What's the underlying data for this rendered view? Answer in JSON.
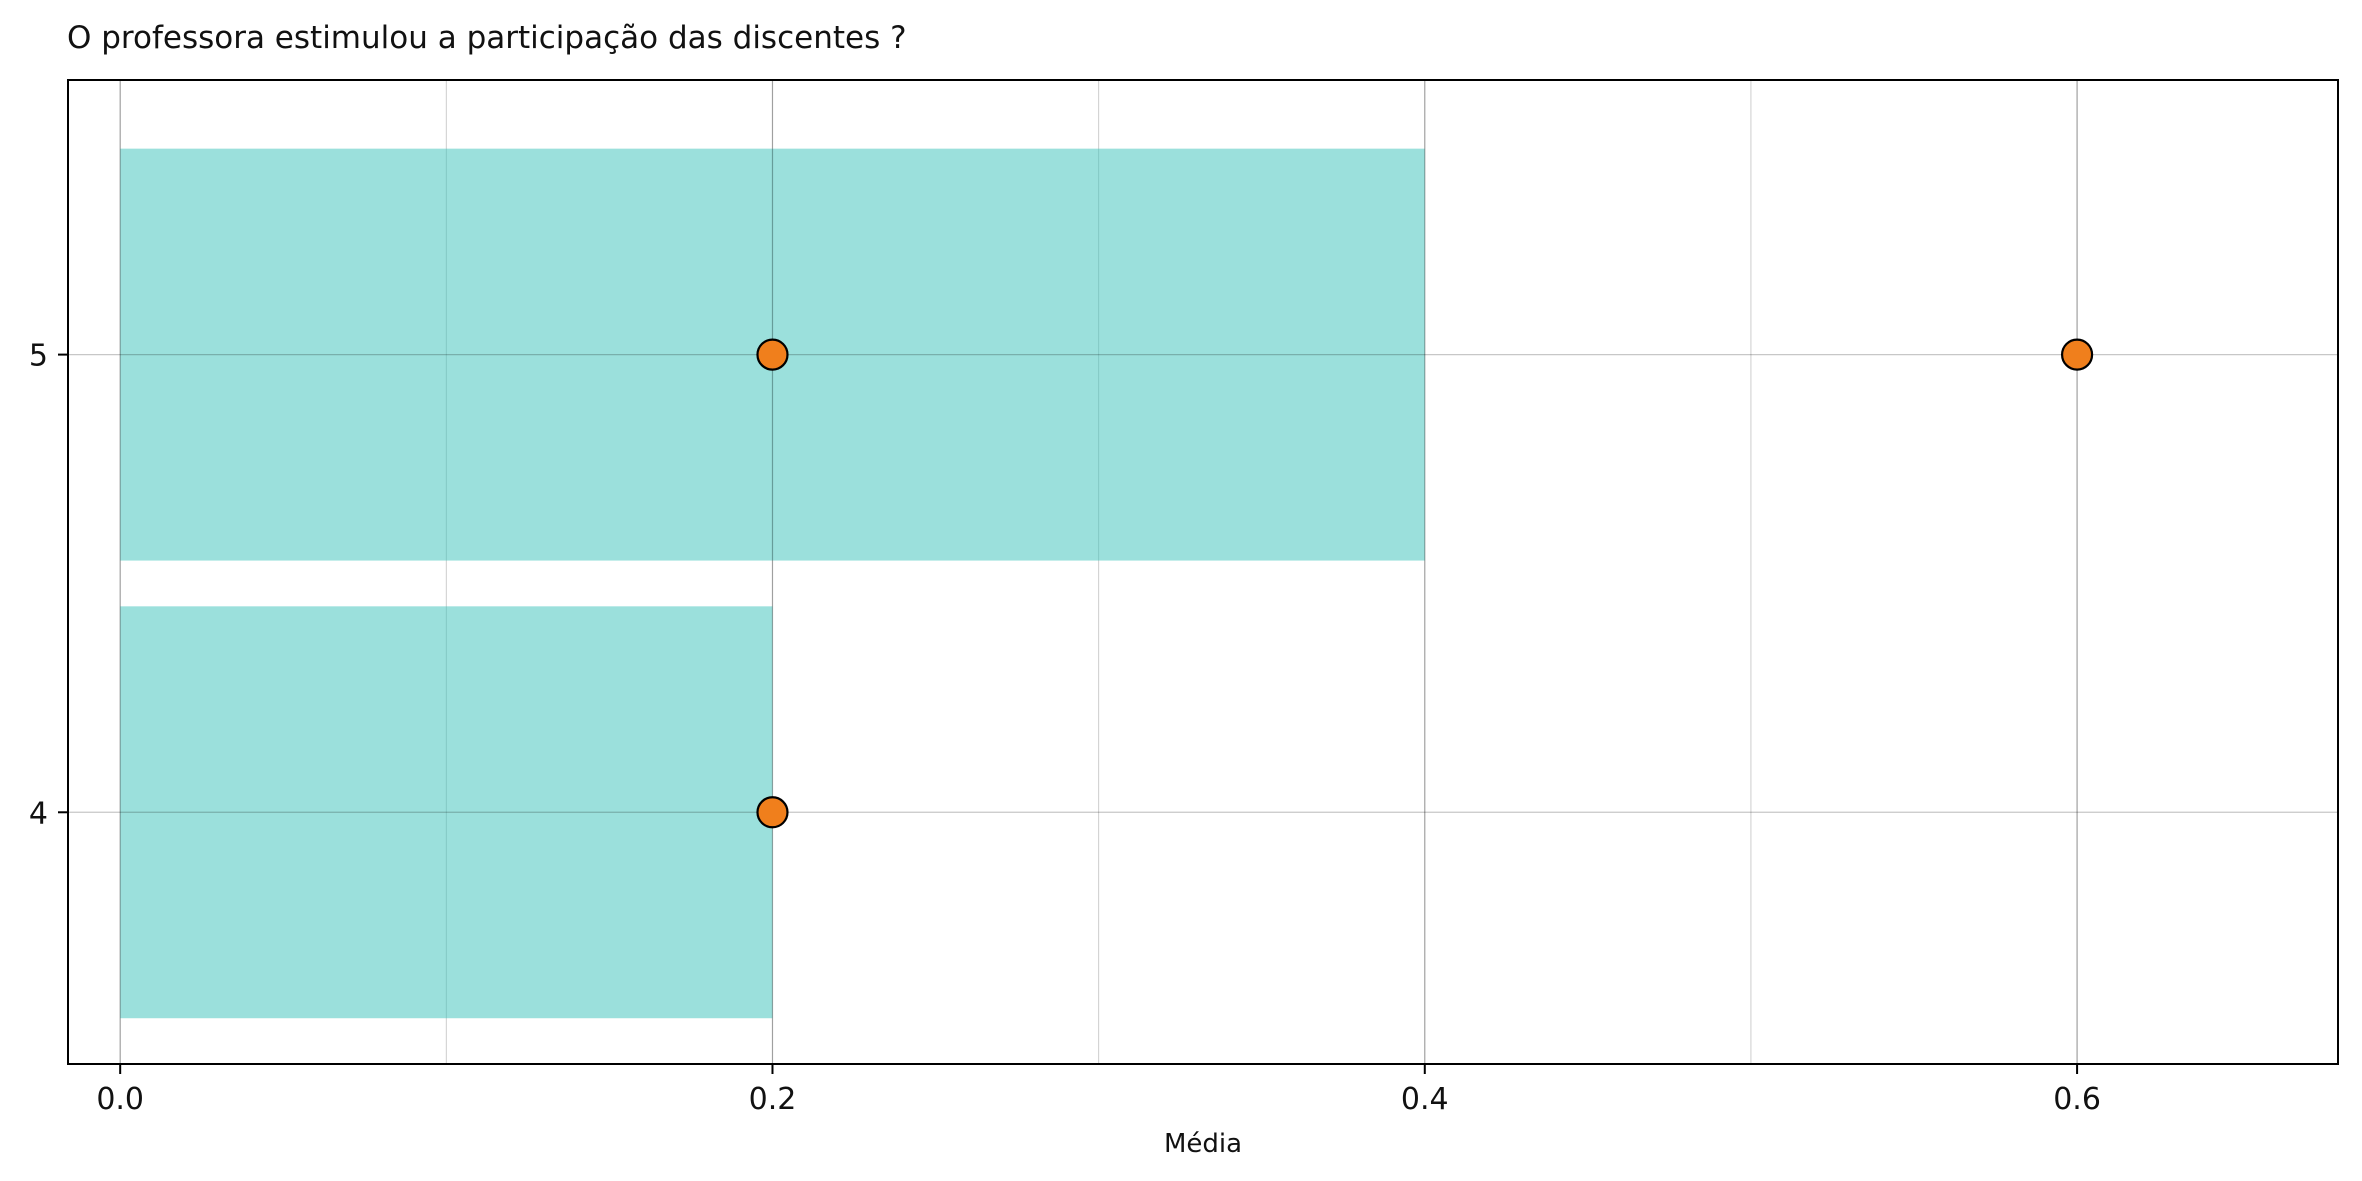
{
  "chart_data": {
    "type": "bar",
    "orientation": "horizontal",
    "title": "O professora estimulou a participação das discentes ?",
    "xlabel": "Média",
    "ylabel": "",
    "categories": [
      "4",
      "5"
    ],
    "values": [
      0.2,
      0.4
    ],
    "points": [
      {
        "x": 0.2,
        "y": "5"
      },
      {
        "x": 0.6,
        "y": "5"
      },
      {
        "x": 0.2,
        "y": "4"
      }
    ],
    "xlim": [
      -0.016,
      0.68
    ],
    "xticks": [
      0.0,
      0.2,
      0.4,
      0.6
    ],
    "xtick_labels": [
      "0.0",
      "0.2",
      "0.4",
      "0.6"
    ],
    "grid": true,
    "colors": {
      "bar": "#40c4bc",
      "point": "#f07f1c",
      "point_edge": "#000000",
      "grid": "#b8b8b8"
    }
  }
}
